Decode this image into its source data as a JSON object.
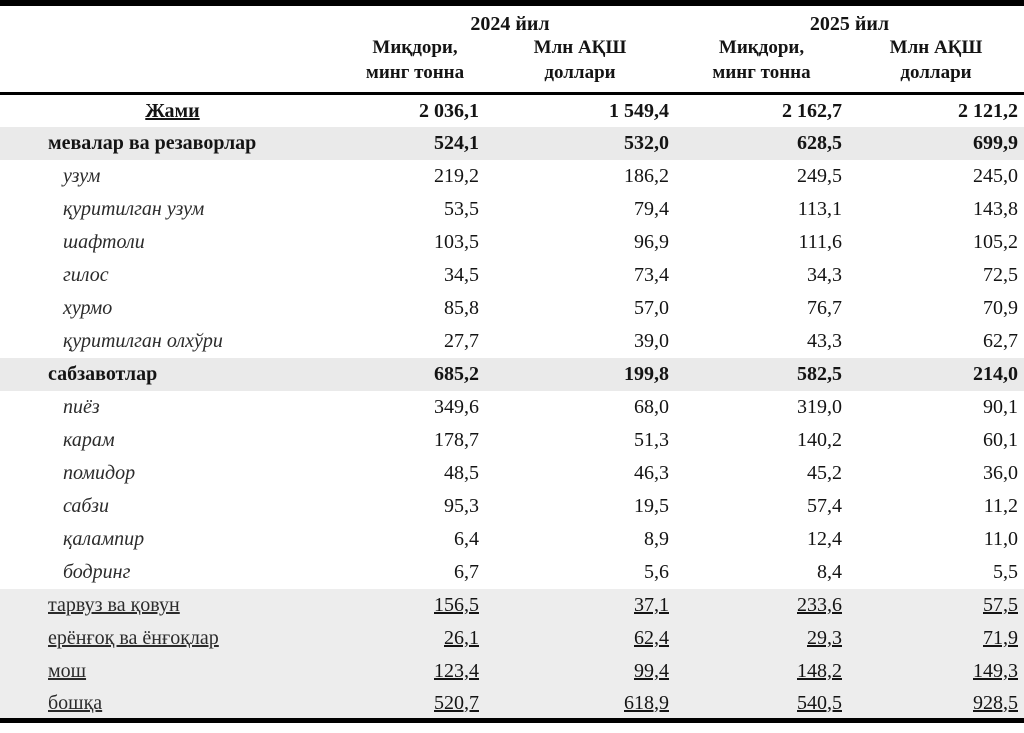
{
  "header": {
    "years": [
      "2024 йил",
      "2025 йил"
    ],
    "subcols": [
      {
        "l1": "Миқдори,",
        "l2": "минг тонна"
      },
      {
        "l1": "Млн АҚШ",
        "l2": "доллари"
      },
      {
        "l1": "Миқдори,",
        "l2": "минг тонна"
      },
      {
        "l1": "Млн АҚШ",
        "l2": "доллари"
      }
    ]
  },
  "rows": [
    {
      "label": "Жами",
      "style": "total",
      "values": [
        "2 036,1",
        "1 549,4",
        "2 162,7",
        "2 121,2"
      ]
    },
    {
      "label": "мевалар ва резаворлар",
      "style": "section",
      "values": [
        "524,1",
        "532,0",
        "628,5",
        "699,9"
      ]
    },
    {
      "label": "узум",
      "style": "item",
      "values": [
        "219,2",
        "186,2",
        "249,5",
        "245,0"
      ]
    },
    {
      "label": "қуритилган узум",
      "style": "item",
      "values": [
        "53,5",
        "79,4",
        "113,1",
        "143,8"
      ]
    },
    {
      "label": "шафтоли",
      "style": "item",
      "values": [
        "103,5",
        "96,9",
        "111,6",
        "105,2"
      ]
    },
    {
      "label": "гилос",
      "style": "item",
      "values": [
        "34,5",
        "73,4",
        "34,3",
        "72,5"
      ]
    },
    {
      "label": "хурмо",
      "style": "item",
      "values": [
        "85,8",
        "57,0",
        "76,7",
        "70,9"
      ]
    },
    {
      "label": "қуритилган олхўри",
      "style": "item",
      "values": [
        "27,7",
        "39,0",
        "43,3",
        "62,7"
      ]
    },
    {
      "label": "сабзавотлар",
      "style": "section",
      "values": [
        "685,2",
        "199,8",
        "582,5",
        "214,0"
      ]
    },
    {
      "label": "пиёз",
      "style": "item",
      "values": [
        "349,6",
        "68,0",
        "319,0",
        "90,1"
      ]
    },
    {
      "label": "карам",
      "style": "item",
      "values": [
        "178,7",
        "51,3",
        "140,2",
        "60,1"
      ]
    },
    {
      "label": "помидор",
      "style": "item",
      "values": [
        "48,5",
        "46,3",
        "45,2",
        "36,0"
      ]
    },
    {
      "label": "сабзи",
      "style": "item",
      "values": [
        "95,3",
        "19,5",
        "57,4",
        "11,2"
      ]
    },
    {
      "label": "қалампир",
      "style": "item",
      "values": [
        "6,4",
        "8,9",
        "12,4",
        "11,0"
      ]
    },
    {
      "label": "бодринг",
      "style": "item",
      "values": [
        "6,7",
        "5,6",
        "8,4",
        "5,5"
      ]
    },
    {
      "label": "тарвуз ва қовун",
      "style": "gray",
      "values": [
        "156,5",
        "37,1",
        "233,6",
        "57,5"
      ]
    },
    {
      "label": "ерёнғоқ ва ёнғоқлар",
      "style": "gray",
      "values": [
        "26,1",
        "62,4",
        "29,3",
        "71,9"
      ]
    },
    {
      "label": "мош",
      "style": "gray",
      "values": [
        "123,4",
        "99,4",
        "148,2",
        "149,3"
      ]
    },
    {
      "label": "бошқа",
      "style": "gray",
      "values": [
        "520,7",
        "618,9",
        "540,5",
        "928,5"
      ]
    }
  ],
  "colors": {
    "section_row_bg": "#eaeaea",
    "gray_row_bg": "#ededed",
    "border": "#000000",
    "text": "#141414"
  }
}
